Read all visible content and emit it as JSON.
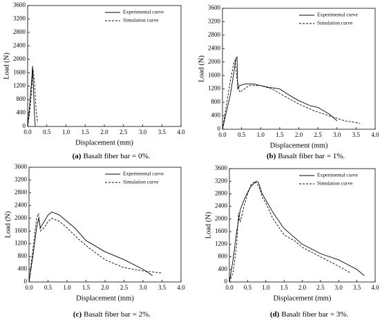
{
  "chart_data": [
    {
      "type": "line",
      "panel": "(a)",
      "caption": "Basalt fiber bar = 0%.",
      "xlabel": "Displacement (mm)",
      "ylabel": "Load  (N)",
      "xlim": [
        0,
        4
      ],
      "ylim": [
        0,
        3600
      ],
      "xticks": [
        {
          "value": 0,
          "label": "0.0"
        },
        0.5,
        {
          "value": 1,
          "label": "1.0"
        },
        1.5,
        {
          "value": 2,
          "label": "2.0"
        },
        2.5,
        {
          "value": 3,
          "label": "3.0"
        },
        3.5,
        {
          "value": 4,
          "label": "4.0"
        }
      ],
      "yticks": [
        0,
        400,
        800,
        1200,
        1600,
        2000,
        2400,
        2800,
        3200,
        3600
      ],
      "legend": "upper right",
      "series": [
        {
          "name": "Experimental curve",
          "color": "#000000",
          "line_style": "solid",
          "x": [
            0,
            0.05,
            0.1,
            0.13,
            0.15,
            0.18,
            0.2
          ],
          "values": [
            0,
            600,
            1300,
            1800,
            1200,
            300,
            0
          ]
        },
        {
          "name": "Simulation curve",
          "color": "#000000",
          "line_style": "dashed",
          "x": [
            0,
            0.05,
            0.1,
            0.14,
            0.18,
            0.22,
            0.26
          ],
          "values": [
            0,
            400,
            1000,
            1700,
            1300,
            500,
            100
          ]
        }
      ]
    },
    {
      "type": "line",
      "panel": "(b)",
      "caption": "Basalt fiber bar = 1%.",
      "xlabel": "Displacement (mm)",
      "ylabel": "Load  (N)",
      "xlim": [
        0,
        4
      ],
      "ylim": [
        0,
        3600
      ],
      "xticks": [
        {
          "value": 0,
          "label": "0.0"
        },
        0.5,
        {
          "value": 1,
          "label": "1.0"
        },
        1.5,
        {
          "value": 2,
          "label": "2.0"
        },
        2.5,
        {
          "value": 3,
          "label": "3.0"
        },
        3.5,
        {
          "value": 4,
          "label": "4.0"
        }
      ],
      "yticks": [
        0,
        400,
        800,
        1200,
        1600,
        2000,
        2400,
        2800,
        3200,
        3600
      ],
      "legend": "upper right",
      "series": [
        {
          "name": "Experimental curve",
          "color": "#000000",
          "line_style": "solid",
          "x": [
            0,
            0.1,
            0.2,
            0.3,
            0.35,
            0.38,
            0.4,
            0.45,
            0.6,
            0.8,
            1.0,
            1.2,
            1.5,
            1.7,
            2.0,
            2.3,
            2.5,
            2.8,
            3.0
          ],
          "values": [
            0,
            500,
            1000,
            1700,
            2100,
            2150,
            1200,
            1300,
            1350,
            1350,
            1300,
            1250,
            1200,
            1050,
            850,
            700,
            650,
            450,
            250
          ]
        },
        {
          "name": "Simulation curve",
          "color": "#000000",
          "line_style": "dashed",
          "x": [
            0,
            0.1,
            0.2,
            0.3,
            0.33,
            0.38,
            0.45,
            0.7,
            1.0,
            1.3,
            1.6,
            2.0,
            2.4,
            2.8,
            3.2,
            3.6
          ],
          "values": [
            0,
            700,
            1400,
            2000,
            2050,
            1500,
            1100,
            1300,
            1300,
            1200,
            1000,
            750,
            550,
            400,
            250,
            180
          ]
        }
      ]
    },
    {
      "type": "line",
      "panel": "(c)",
      "caption": "Basalt fiber bar = 2%.",
      "xlabel": "Displacement (mm)",
      "ylabel": "Load  (N)",
      "xlim": [
        0,
        4
      ],
      "ylim": [
        0,
        3600
      ],
      "xticks": [
        {
          "value": 0,
          "label": "0.0"
        },
        0.5,
        {
          "value": 1,
          "label": "1.0"
        },
        1.5,
        {
          "value": 2,
          "label": "2.0"
        },
        2.5,
        {
          "value": 3,
          "label": "3.0"
        },
        3.5,
        {
          "value": 4,
          "label": "4.0"
        }
      ],
      "yticks": [
        0,
        400,
        800,
        1200,
        1600,
        2000,
        2400,
        2800,
        3200,
        3600
      ],
      "legend": "upper right",
      "series": [
        {
          "name": "Experimental curve",
          "color": "#000000",
          "line_style": "solid",
          "x": [
            0,
            0.1,
            0.2,
            0.25,
            0.3,
            0.4,
            0.5,
            0.6,
            0.8,
            1.0,
            1.2,
            1.5,
            2.0,
            2.5,
            3.0,
            3.25
          ],
          "values": [
            0,
            800,
            1700,
            2000,
            1700,
            1900,
            2100,
            2200,
            2100,
            1900,
            1700,
            1300,
            950,
            700,
            400,
            200
          ]
        },
        {
          "name": "Simulation curve",
          "color": "#000000",
          "line_style": "dashed",
          "x": [
            0,
            0.1,
            0.2,
            0.25,
            0.3,
            0.4,
            0.5,
            0.6,
            0.8,
            1.0,
            1.3,
            1.6,
            2.0,
            2.5,
            3.0,
            3.5
          ],
          "values": [
            0,
            1000,
            2000,
            2150,
            1600,
            1700,
            1900,
            2000,
            1900,
            1700,
            1350,
            1050,
            700,
            450,
            350,
            280
          ]
        }
      ]
    },
    {
      "type": "line",
      "panel": "(d)",
      "caption": "Basalt fiber bar = 3%.",
      "xlabel": "Displacement (mm)",
      "ylabel": "Load  (N)",
      "xlim": [
        0,
        4
      ],
      "ylim": [
        0,
        3600
      ],
      "xticks": [
        {
          "value": 0,
          "label": "0.0"
        },
        0.5,
        {
          "value": 1,
          "label": "1.0"
        },
        1.5,
        {
          "value": 2,
          "label": "2.0"
        },
        2.5,
        {
          "value": 3,
          "label": "3.0"
        },
        3.5,
        {
          "value": 4,
          "label": "4.0"
        }
      ],
      "yticks": [
        0,
        400,
        800,
        1200,
        1600,
        2000,
        2400,
        2800,
        3200,
        3600
      ],
      "legend": "upper right",
      "series": [
        {
          "name": "Experimental curve",
          "color": "#000000",
          "line_style": "solid",
          "x": [
            0,
            0.1,
            0.2,
            0.3,
            0.4,
            0.5,
            0.6,
            0.7,
            0.75,
            0.8,
            0.9,
            1.0,
            1.2,
            1.5,
            2.0,
            2.5,
            3.0,
            3.5,
            3.7
          ],
          "values": [
            0,
            700,
            1600,
            2300,
            2600,
            2850,
            3050,
            3150,
            3200,
            3150,
            2800,
            2600,
            2200,
            1700,
            1200,
            900,
            700,
            400,
            200
          ]
        },
        {
          "name": "Simulation curve",
          "color": "#000000",
          "line_style": "dashed",
          "x": [
            0,
            0.1,
            0.2,
            0.25,
            0.3,
            0.4,
            0.5,
            0.6,
            0.7,
            0.8,
            0.9,
            1.0,
            1.2,
            1.5,
            1.8,
            2.0,
            2.5,
            3.0,
            3.3
          ],
          "values": [
            0,
            300,
            1200,
            2200,
            1900,
            2400,
            2800,
            3100,
            3200,
            3050,
            2700,
            2500,
            2000,
            1500,
            1300,
            1100,
            800,
            500,
            300
          ]
        }
      ]
    }
  ]
}
